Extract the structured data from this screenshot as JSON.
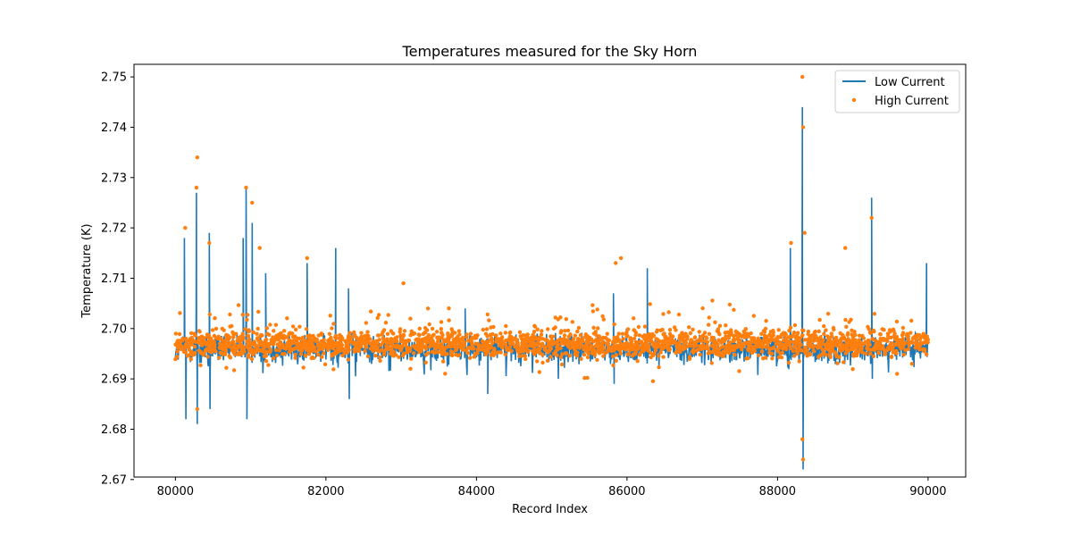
{
  "chart_data": {
    "type": "line",
    "title": "Temperatures measured for the Sky Horn",
    "xlabel": "Record Index",
    "ylabel": "Temperature (K)",
    "xlim": [
      79450,
      90500
    ],
    "ylim": [
      2.6705,
      2.7525
    ],
    "xticks": [
      80000,
      82000,
      84000,
      86000,
      88000,
      90000
    ],
    "yticks": [
      2.67,
      2.68,
      2.69,
      2.7,
      2.71,
      2.72,
      2.73,
      2.74,
      2.75
    ],
    "ytick_labels": [
      "2.67",
      "2.68",
      "2.69",
      "2.70",
      "2.71",
      "2.72",
      "2.73",
      "2.74",
      "2.75"
    ],
    "legend_position": "top-right",
    "grid": false,
    "series": [
      {
        "name": "Low Current",
        "kind": "line",
        "color": "#1f77b4",
        "x_start": 80000,
        "x_end": 90000,
        "baseline": 2.696,
        "noise_amplitude": 0.003,
        "spikes": [
          {
            "x": 80120,
            "y": 2.718
          },
          {
            "x": 80140,
            "y": 2.682
          },
          {
            "x": 80280,
            "y": 2.727
          },
          {
            "x": 80290,
            "y": 2.681
          },
          {
            "x": 80450,
            "y": 2.719
          },
          {
            "x": 80460,
            "y": 2.684
          },
          {
            "x": 80900,
            "y": 2.718
          },
          {
            "x": 80940,
            "y": 2.728
          },
          {
            "x": 80950,
            "y": 2.682
          },
          {
            "x": 81020,
            "y": 2.721
          },
          {
            "x": 81200,
            "y": 2.711
          },
          {
            "x": 81750,
            "y": 2.713
          },
          {
            "x": 82130,
            "y": 2.716
          },
          {
            "x": 82300,
            "y": 2.708
          },
          {
            "x": 82310,
            "y": 2.686
          },
          {
            "x": 83850,
            "y": 2.704
          },
          {
            "x": 84150,
            "y": 2.687
          },
          {
            "x": 85820,
            "y": 2.707
          },
          {
            "x": 85830,
            "y": 2.689
          },
          {
            "x": 86270,
            "y": 2.712
          },
          {
            "x": 88170,
            "y": 2.716
          },
          {
            "x": 88330,
            "y": 2.744
          },
          {
            "x": 88340,
            "y": 2.672
          },
          {
            "x": 89250,
            "y": 2.726
          },
          {
            "x": 89260,
            "y": 2.69
          },
          {
            "x": 89980,
            "y": 2.713
          }
        ]
      },
      {
        "name": "High Current",
        "kind": "scatter",
        "color": "#ff7f0e",
        "x_start": 80000,
        "x_end": 90000,
        "baseline": 2.697,
        "noise_amplitude": 0.0028,
        "outliers": [
          {
            "x": 80130,
            "y": 2.72
          },
          {
            "x": 80290,
            "y": 2.734
          },
          {
            "x": 80280,
            "y": 2.728
          },
          {
            "x": 80450,
            "y": 2.717
          },
          {
            "x": 80940,
            "y": 2.728
          },
          {
            "x": 81020,
            "y": 2.725
          },
          {
            "x": 81120,
            "y": 2.716
          },
          {
            "x": 81750,
            "y": 2.714
          },
          {
            "x": 83030,
            "y": 2.709
          },
          {
            "x": 85850,
            "y": 2.713
          },
          {
            "x": 85920,
            "y": 2.714
          },
          {
            "x": 88180,
            "y": 2.717
          },
          {
            "x": 88330,
            "y": 2.75
          },
          {
            "x": 88340,
            "y": 2.74
          },
          {
            "x": 88360,
            "y": 2.719
          },
          {
            "x": 88900,
            "y": 2.716
          },
          {
            "x": 89250,
            "y": 2.722
          },
          {
            "x": 88340,
            "y": 2.674
          },
          {
            "x": 88330,
            "y": 2.678
          },
          {
            "x": 80290,
            "y": 2.684
          }
        ]
      }
    ]
  }
}
